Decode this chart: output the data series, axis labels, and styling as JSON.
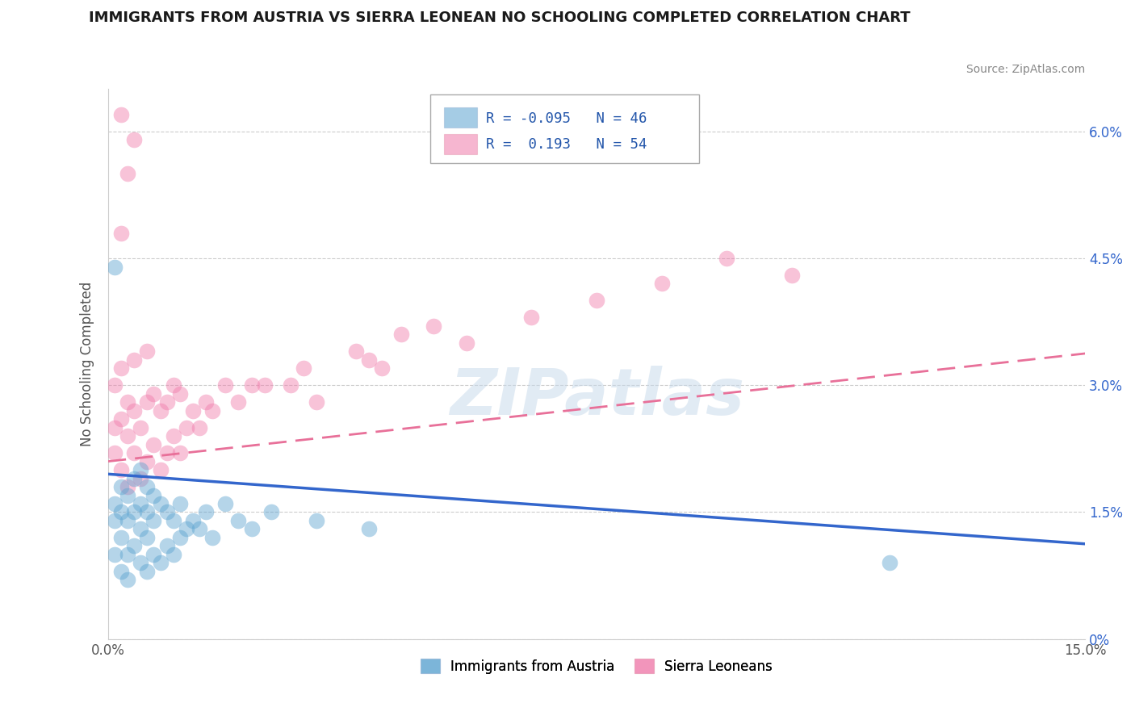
{
  "title": "IMMIGRANTS FROM AUSTRIA VS SIERRA LEONEAN NO SCHOOLING COMPLETED CORRELATION CHART",
  "source": "Source: ZipAtlas.com",
  "ylabel": "No Schooling Completed",
  "xlim": [
    0.0,
    0.15
  ],
  "ylim": [
    0.0,
    0.065
  ],
  "xticks": [
    0.0,
    0.05,
    0.1,
    0.15
  ],
  "xticklabels": [
    "0.0%",
    "",
    "",
    "15.0%"
  ],
  "yticks_right": [
    0.0,
    0.015,
    0.03,
    0.045,
    0.06
  ],
  "yticklabels_right": [
    "0%",
    "1.5%",
    "3.0%",
    "4.5%",
    "6.0%"
  ],
  "legend_entries": [
    {
      "label": "Immigrants from Austria",
      "color": "#7db8d9"
    },
    {
      "label": "Sierra Leoneans",
      "color": "#f093b0"
    }
  ],
  "blue_color": "#5ba3d0",
  "pink_color": "#f07aaa",
  "blue_line_color": "#3366cc",
  "pink_line_color": "#e87099",
  "trend_blue_intercept": 0.0195,
  "trend_blue_slope": -0.055,
  "trend_pink_intercept": 0.021,
  "trend_pink_slope": 0.085,
  "watermark": "ZIPatlas",
  "background_color": "#ffffff",
  "grid_color": "#cccccc",
  "blue_scatter_x": [
    0.001,
    0.001,
    0.001,
    0.002,
    0.002,
    0.002,
    0.002,
    0.003,
    0.003,
    0.003,
    0.003,
    0.004,
    0.004,
    0.004,
    0.005,
    0.005,
    0.005,
    0.005,
    0.006,
    0.006,
    0.006,
    0.006,
    0.007,
    0.007,
    0.007,
    0.008,
    0.008,
    0.009,
    0.009,
    0.01,
    0.01,
    0.011,
    0.011,
    0.012,
    0.013,
    0.014,
    0.015,
    0.016,
    0.018,
    0.02,
    0.022,
    0.025,
    0.032,
    0.04,
    0.12,
    0.001
  ],
  "blue_scatter_y": [
    0.014,
    0.016,
    0.01,
    0.012,
    0.015,
    0.018,
    0.008,
    0.01,
    0.014,
    0.017,
    0.007,
    0.011,
    0.015,
    0.019,
    0.009,
    0.013,
    0.016,
    0.02,
    0.008,
    0.012,
    0.015,
    0.018,
    0.01,
    0.014,
    0.017,
    0.009,
    0.016,
    0.011,
    0.015,
    0.01,
    0.014,
    0.012,
    0.016,
    0.013,
    0.014,
    0.013,
    0.015,
    0.012,
    0.016,
    0.014,
    0.013,
    0.015,
    0.014,
    0.013,
    0.009,
    0.044
  ],
  "pink_scatter_x": [
    0.001,
    0.001,
    0.001,
    0.002,
    0.002,
    0.002,
    0.003,
    0.003,
    0.003,
    0.004,
    0.004,
    0.004,
    0.005,
    0.005,
    0.006,
    0.006,
    0.006,
    0.007,
    0.007,
    0.008,
    0.008,
    0.009,
    0.009,
    0.01,
    0.01,
    0.011,
    0.011,
    0.012,
    0.013,
    0.014,
    0.015,
    0.016,
    0.018,
    0.02,
    0.022,
    0.024,
    0.028,
    0.03,
    0.032,
    0.038,
    0.04,
    0.042,
    0.045,
    0.05,
    0.055,
    0.065,
    0.075,
    0.085,
    0.095,
    0.105,
    0.002,
    0.003,
    0.004,
    0.002
  ],
  "pink_scatter_y": [
    0.022,
    0.025,
    0.03,
    0.02,
    0.026,
    0.032,
    0.018,
    0.024,
    0.028,
    0.022,
    0.027,
    0.033,
    0.019,
    0.025,
    0.021,
    0.028,
    0.034,
    0.023,
    0.029,
    0.02,
    0.027,
    0.022,
    0.028,
    0.024,
    0.03,
    0.022,
    0.029,
    0.025,
    0.027,
    0.025,
    0.028,
    0.027,
    0.03,
    0.028,
    0.03,
    0.03,
    0.03,
    0.032,
    0.028,
    0.034,
    0.033,
    0.032,
    0.036,
    0.037,
    0.035,
    0.038,
    0.04,
    0.042,
    0.045,
    0.043,
    0.048,
    0.055,
    0.059,
    0.062
  ]
}
